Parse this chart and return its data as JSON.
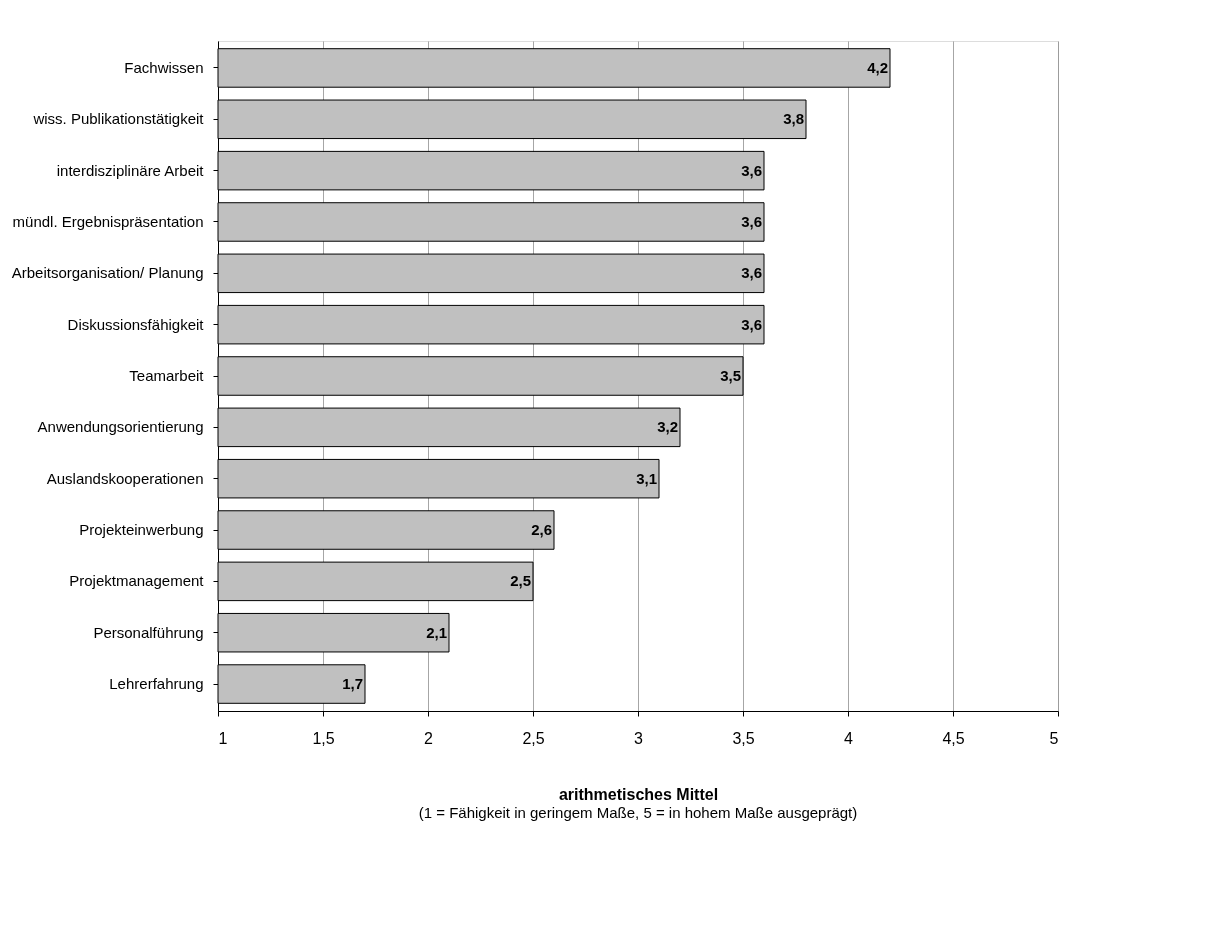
{
  "chart_data": {
    "type": "bar",
    "orientation": "horizontal",
    "categories": [
      "Fachwissen",
      "wiss. Publikationstätigkeit",
      "interdisziplinäre Arbeit",
      "mündl. Ergebnispräsentation",
      "Arbeitsorganisation/ Planung",
      "Diskussionsfähigkeit",
      "Teamarbeit",
      "Anwendungsorientierung",
      "Auslandskooperationen",
      "Projekteinwerbung",
      "Projektmanagement",
      "Personalführung",
      "Lehrerfahrung"
    ],
    "values": [
      4.2,
      3.8,
      3.6,
      3.6,
      3.6,
      3.6,
      3.5,
      3.2,
      3.1,
      2.6,
      2.5,
      2.1,
      1.7
    ],
    "value_labels": [
      "4,2",
      "3,8",
      "3,6",
      "3,6",
      "3,6",
      "3,6",
      "3,5",
      "3,2",
      "3,1",
      "2,6",
      "2,5",
      "2,1",
      "1,7"
    ],
    "color": "#c0c0c0",
    "xlim": [
      1,
      5
    ],
    "xticks": [
      1,
      {
        "value": 1.5,
        "label": "1,5"
      },
      2,
      {
        "value": 2.5,
        "label": "2,5"
      },
      3,
      {
        "value": 3.5,
        "label": "3,5"
      },
      4,
      {
        "value": 4.5,
        "label": "4,5"
      },
      5
    ],
    "xlabel": "arithmetisches Mittel",
    "annotations": [
      "(1 = Fähigkeit in geringem Maße, 5 = in hohem Maße ausgeprägt)"
    ],
    "grid": "x"
  }
}
